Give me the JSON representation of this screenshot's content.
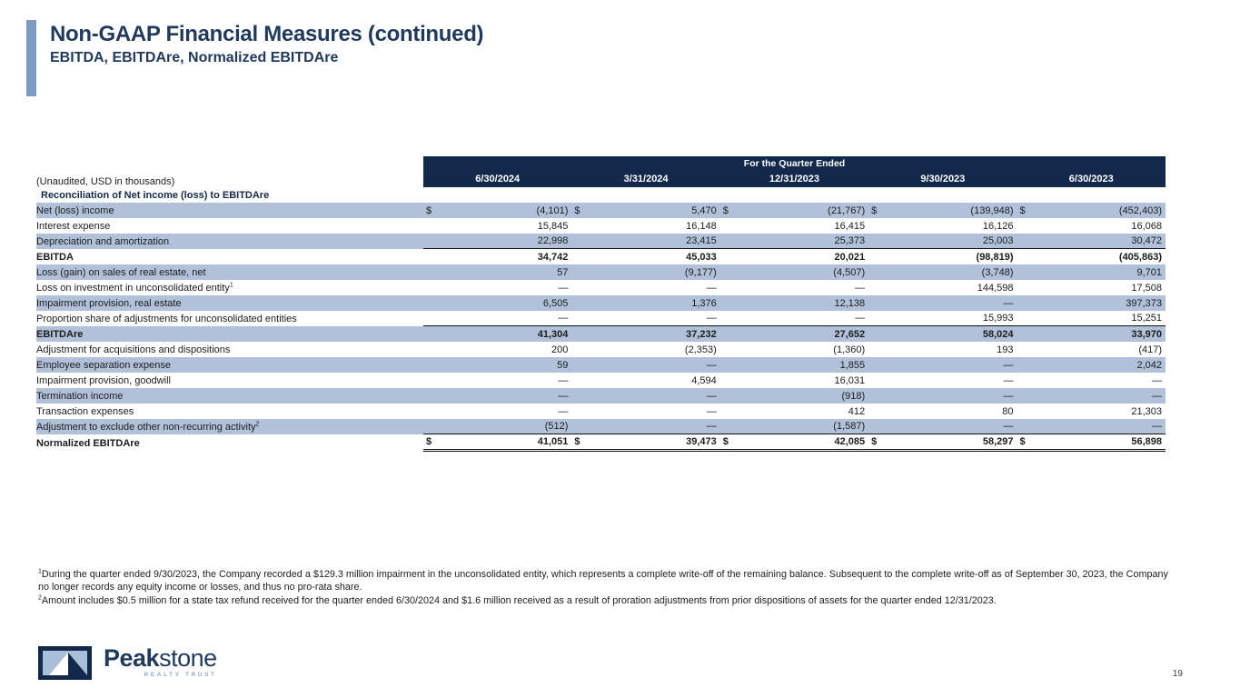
{
  "header": {
    "title": "Non-GAAP Financial Measures (continued)",
    "subtitle": "EBITDA, EBITDAre, Normalized EBITDAre"
  },
  "table": {
    "unaudited_note": "(Unaudited, USD in thousands)",
    "section_header": "Reconciliation of Net income (loss) to EBITDAre",
    "quarter_header": "For the Quarter Ended",
    "columns": [
      "6/30/2024",
      "3/31/2024",
      "12/31/2023",
      "9/30/2023",
      "6/30/2023"
    ],
    "rows": [
      {
        "label": "Net (loss) income",
        "dollar": true,
        "bold": false,
        "underline": "none",
        "values": [
          "(4,101)",
          "5,470",
          "(21,767)",
          "(139,948)",
          "(452,403)"
        ]
      },
      {
        "label": "Interest expense",
        "dollar": false,
        "bold": false,
        "underline": "none",
        "values": [
          "15,845",
          "16,148",
          "16,415",
          "16,126",
          "16,068"
        ]
      },
      {
        "label": "Depreciation and amortization",
        "dollar": false,
        "bold": false,
        "underline": "single",
        "values": [
          "22,998",
          "23,415",
          "25,373",
          "25,003",
          "30,472"
        ]
      },
      {
        "label": "EBITDA",
        "dollar": false,
        "bold": true,
        "underline": "none",
        "values": [
          "34,742",
          "45,033",
          "20,021",
          "(98,819)",
          "(405,863)"
        ]
      },
      {
        "label": "Loss (gain) on sales of real estate, net",
        "dollar": false,
        "bold": false,
        "underline": "none",
        "values": [
          "57",
          "(9,177)",
          "(4,507)",
          "(3,748)",
          "9,701"
        ]
      },
      {
        "label": "Loss on investment in unconsolidated entity",
        "sup": "1",
        "dollar": false,
        "bold": false,
        "underline": "none",
        "values": [
          "—",
          "—",
          "—",
          "144,598",
          "17,508"
        ]
      },
      {
        "label": "Impairment provision, real estate",
        "dollar": false,
        "bold": false,
        "underline": "none",
        "values": [
          "6,505",
          "1,376",
          "12,138",
          "—",
          "397,373"
        ]
      },
      {
        "label": "Proportion share of adjustments for unconsolidated entities",
        "dollar": false,
        "bold": false,
        "underline": "single",
        "values": [
          "—",
          "—",
          "—",
          "15,993",
          "15,251"
        ]
      },
      {
        "label": "EBITDAre",
        "dollar": false,
        "bold": true,
        "underline": "none",
        "values": [
          "41,304",
          "37,232",
          "27,652",
          "58,024",
          "33,970"
        ]
      },
      {
        "label": "Adjustment for acquisitions and dispositions",
        "dollar": false,
        "bold": false,
        "underline": "none",
        "values": [
          "200",
          "(2,353)",
          "(1,360)",
          "193",
          "(417)"
        ]
      },
      {
        "label": "Employee separation expense",
        "dollar": false,
        "bold": false,
        "underline": "none",
        "values": [
          "59",
          "—",
          "1,855",
          "—",
          "2,042"
        ]
      },
      {
        "label": "Impairment provision, goodwill",
        "dollar": false,
        "bold": false,
        "underline": "none",
        "values": [
          "—",
          "4,594",
          "16,031",
          "—",
          "—"
        ]
      },
      {
        "label": "Termination income",
        "dollar": false,
        "bold": false,
        "underline": "none",
        "values": [
          "—",
          "—",
          "(918)",
          "—",
          "—"
        ]
      },
      {
        "label": "Transaction expenses",
        "dollar": false,
        "bold": false,
        "underline": "none",
        "values": [
          "—",
          "—",
          "412",
          "80",
          "21,303"
        ]
      },
      {
        "label": "Adjustment to exclude other non-recurring activity",
        "sup": "2",
        "dollar": false,
        "bold": false,
        "underline": "single",
        "values": [
          "(512)",
          "—",
          "(1,587)",
          "—",
          "—"
        ]
      },
      {
        "label": "Normalized EBITDAre",
        "dollar": true,
        "bold": true,
        "underline": "double",
        "values": [
          "41,051",
          "39,473",
          "42,085",
          "58,297",
          "56,898"
        ]
      }
    ]
  },
  "footnotes": [
    {
      "sup": "1",
      "text": "During the quarter ended 9/30/2023, the Company recorded a $129.3 million impairment in the unconsolidated entity, which represents a complete write-off of the remaining balance. Subsequent to the complete write-off as of September 30, 2023, the Company no longer records any equity income or losses, and thus no pro-rata share."
    },
    {
      "sup": "2",
      "text": "Amount includes $0.5 million for a state tax refund received for the quarter ended 6/30/2024 and $1.6 million received as a result of proration adjustments from prior dispositions of assets for the quarter ended 12/31/2023."
    }
  ],
  "logo": {
    "brand_bold": "Peak",
    "brand_light": "stone",
    "tagline": "REALTY TRUST"
  },
  "page": {
    "number": "19"
  },
  "colors": {
    "navy": "#13294b",
    "row_shade": "#b0c1d9",
    "accent_bar": "#7d9bc1",
    "title_navy": "#1f3a5c",
    "tagline_blue": "#8fa9c9"
  }
}
